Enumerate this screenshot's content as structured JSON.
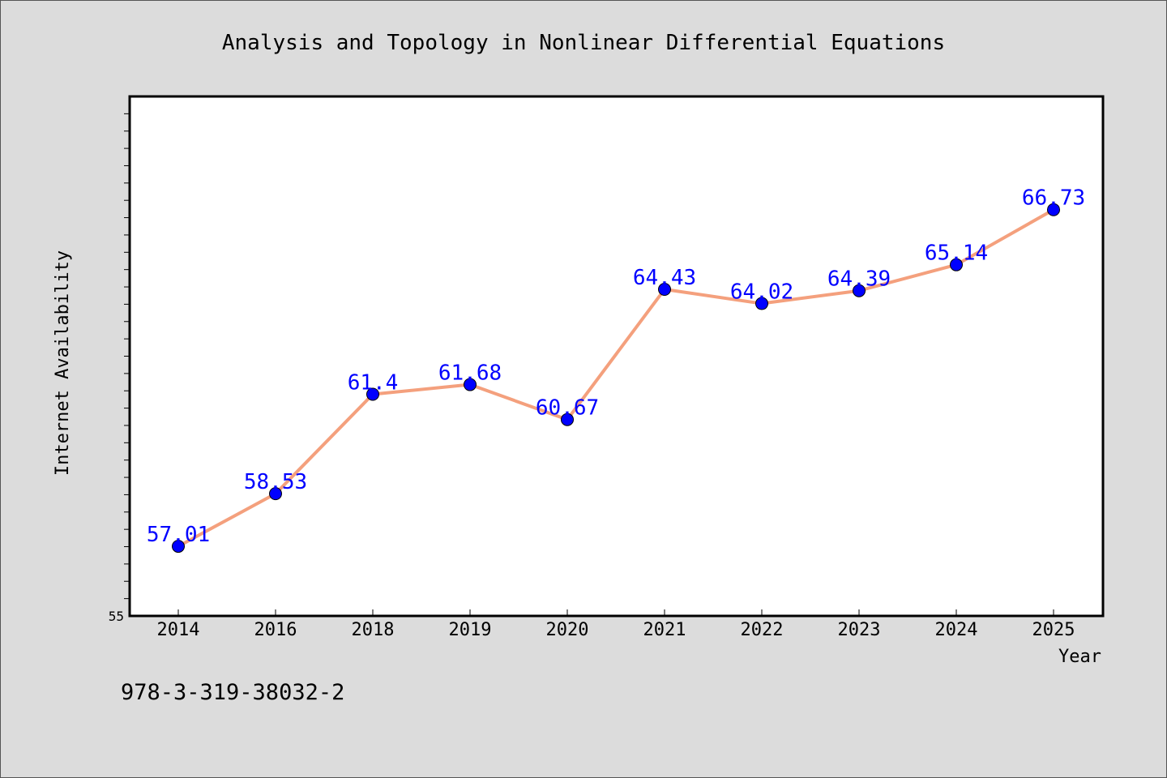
{
  "chart_data": {
    "type": "line",
    "title": "Analysis and Topology in Nonlinear Differential Equations",
    "xlabel": "Year",
    "ylabel": "Internet Availability",
    "categories": [
      "2014",
      "2016",
      "2018",
      "2019",
      "2020",
      "2021",
      "2022",
      "2023",
      "2024",
      "2025"
    ],
    "series": [
      {
        "values": [
          57.01,
          58.53,
          61.4,
          61.68,
          60.67,
          64.43,
          64.02,
          64.39,
          65.14,
          66.73
        ],
        "labels": [
          "57.01",
          "58.53",
          "61.4",
          "61.68",
          "60.67",
          "64.43",
          "64.02",
          "64.39",
          "65.14",
          "66.73"
        ]
      }
    ],
    "ylim": [
      55,
      70
    ],
    "y_tick_labels": [
      "55"
    ],
    "grid": false,
    "colors": {
      "line": "#f4a07d",
      "marker": "#0000ff",
      "label": "#0000ff",
      "background": "#dcdcdc",
      "plot_background": "#ffffff"
    }
  },
  "footer": {
    "isbn": "978-3-319-38032-2"
  }
}
